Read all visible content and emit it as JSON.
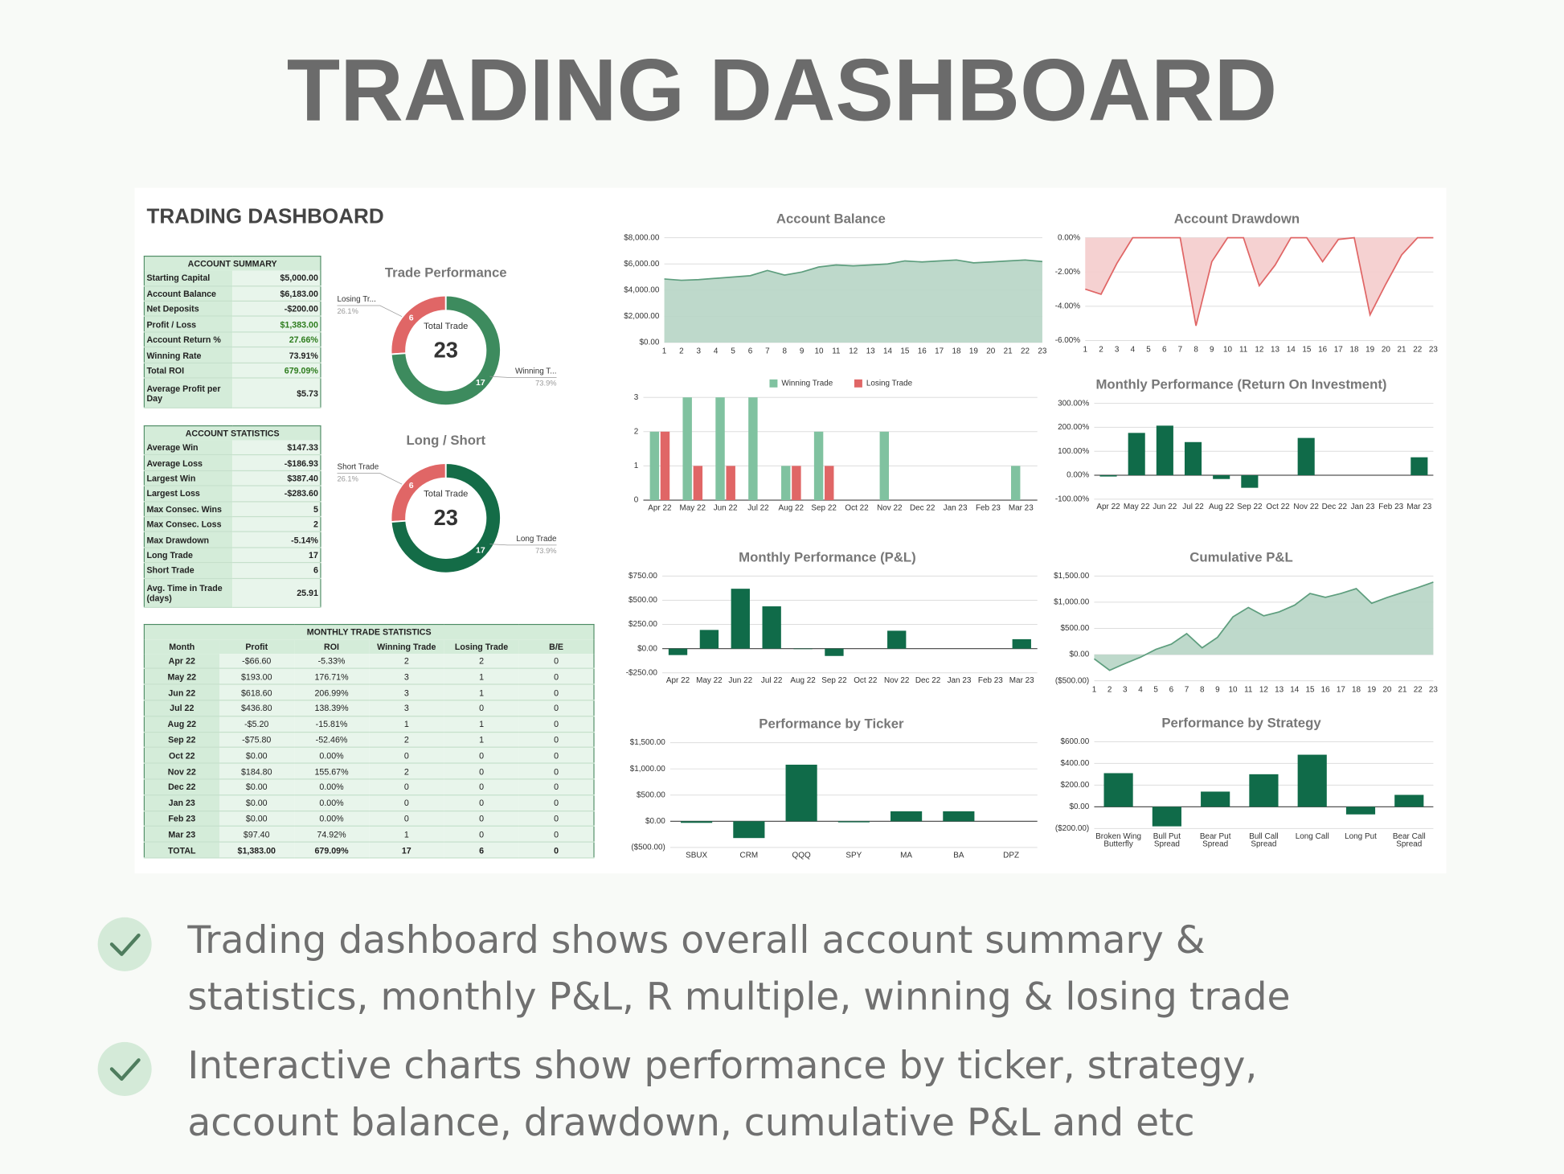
{
  "header": {
    "title": "TRADING DASHBOARD"
  },
  "dashboard": {
    "title": "TRADING DASHBOARD"
  },
  "account_summary": {
    "title": "ACCOUNT SUMMARY",
    "rows": [
      [
        "Starting Capital",
        "$5,000.00"
      ],
      [
        "Account Balance",
        "$6,183.00"
      ],
      [
        "Net Deposits",
        "-$200.00"
      ],
      [
        "Profit / Loss",
        "$1,383.00"
      ],
      [
        "Account Return %",
        "27.66%"
      ],
      [
        "Winning Rate",
        "73.91%"
      ],
      [
        "Total ROI",
        "679.09%"
      ],
      [
        "Average Profit per Day",
        "$5.73"
      ]
    ]
  },
  "account_statistics": {
    "title": "ACCOUNT STATISTICS",
    "rows": [
      [
        "Average Win",
        "$147.33"
      ],
      [
        "Average Loss",
        "-$186.93"
      ],
      [
        "Largest Win",
        "$387.40"
      ],
      [
        "Largest Loss",
        "-$283.60"
      ],
      [
        "Max Consec. Wins",
        5
      ],
      [
        "Max Consec. Loss",
        2
      ],
      [
        "Max Drawdown",
        "-5.14%"
      ],
      [
        "Long Trade",
        17
      ],
      [
        "Short Trade",
        6
      ],
      [
        "Avg. Time in Trade (days)",
        "25.91"
      ]
    ]
  },
  "monthly_trade_statistics": {
    "title": "MONTHLY TRADE STATISTICS",
    "columns": [
      "Month",
      "Profit",
      "ROI",
      "Winning Trade",
      "Losing Trade",
      "B/E"
    ],
    "rows": [
      [
        "Apr 22",
        "-$66.60",
        "-5.33%",
        2,
        2,
        0
      ],
      [
        "May 22",
        "$193.00",
        "176.71%",
        3,
        1,
        0
      ],
      [
        "Jun 22",
        "$618.60",
        "206.99%",
        3,
        1,
        0
      ],
      [
        "Jul 22",
        "$436.80",
        "138.39%",
        3,
        0,
        0
      ],
      [
        "Aug 22",
        "-$5.20",
        "-15.81%",
        1,
        1,
        0
      ],
      [
        "Sep 22",
        "-$75.80",
        "-52.46%",
        2,
        1,
        0
      ],
      [
        "Oct 22",
        "$0.00",
        "0.00%",
        0,
        0,
        0
      ],
      [
        "Nov 22",
        "$184.80",
        "155.67%",
        2,
        0,
        0
      ],
      [
        "Dec 22",
        "$0.00",
        "0.00%",
        0,
        0,
        0
      ],
      [
        "Jan 23",
        "$0.00",
        "0.00%",
        0,
        0,
        0
      ],
      [
        "Feb 23",
        "$0.00",
        "0.00%",
        0,
        0,
        0
      ],
      [
        "Mar 23",
        "$97.40",
        "74.92%",
        1,
        0,
        0
      ]
    ],
    "total": [
      "TOTAL",
      "$1,383.00",
      "679.09%",
      17,
      6,
      0
    ]
  },
  "chart_data": [
    {
      "type": "donut",
      "title": "Trade Performance",
      "categories": [
        "Losing Tr...",
        "Winning T..."
      ],
      "values": [
        6,
        17
      ],
      "percent_labels": [
        "26.1%",
        "73.9%"
      ],
      "colors": [
        "#e06666",
        "#3d8b5e"
      ],
      "center_label": "Total Trade",
      "total": 23
    },
    {
      "type": "donut",
      "title": "Long / Short",
      "categories": [
        "Short Trade",
        "Long Trade"
      ],
      "values": [
        6,
        17
      ],
      "percent_labels": [
        "26.1%",
        "73.9%"
      ],
      "colors": [
        "#e06666",
        "#146c47"
      ],
      "center_label": "Total Trade",
      "total": 23
    },
    {
      "type": "area",
      "title": "Account Balance",
      "x": [
        1,
        2,
        3,
        4,
        5,
        6,
        7,
        8,
        9,
        10,
        11,
        12,
        13,
        14,
        15,
        16,
        17,
        18,
        19,
        20,
        21,
        22,
        23
      ],
      "values": [
        4850,
        4750,
        4800,
        4900,
        5000,
        5100,
        5500,
        5150,
        5380,
        5770,
        5920,
        5850,
        5920,
        6000,
        6230,
        6150,
        6230,
        6300,
        6080,
        6150,
        6230,
        6300,
        6183
      ],
      "xlim": [
        1,
        23
      ],
      "xticks": [
        1,
        2,
        3,
        4,
        5,
        6,
        7,
        8,
        9,
        10,
        11,
        12,
        13,
        14,
        15,
        16,
        17,
        18,
        19,
        20,
        21,
        22,
        23
      ],
      "ylim": [
        0,
        8000
      ],
      "yticks": [
        {
          "value": 0,
          "label": "$0.00"
        },
        {
          "value": 2000,
          "label": "$2,000.00"
        },
        {
          "value": 4000,
          "label": "$4,000.00"
        },
        {
          "value": 6000,
          "label": "$6,000.00"
        },
        {
          "value": 8000,
          "label": "$8,000.00"
        }
      ],
      "color": "#5e9e7e",
      "area_color": "#b7d5c5",
      "grid": true
    },
    {
      "type": "area",
      "title": "Account Drawdown",
      "x": [
        1,
        2,
        3,
        4,
        5,
        6,
        7,
        8,
        9,
        10,
        11,
        12,
        13,
        14,
        15,
        16,
        17,
        18,
        19,
        20,
        21,
        22,
        23
      ],
      "values": [
        -3.0,
        -3.3,
        -1.5,
        0,
        0,
        0,
        0,
        -5.14,
        -1.4,
        0,
        0,
        -2.8,
        -1.6,
        0,
        0,
        -1.4,
        -0.1,
        0,
        -4.5,
        -2.7,
        -1.0,
        0,
        0
      ],
      "xlim": [
        1,
        23
      ],
      "xticks": [
        1,
        2,
        3,
        4,
        5,
        6,
        7,
        8,
        9,
        10,
        11,
        12,
        13,
        14,
        15,
        16,
        17,
        18,
        19,
        20,
        21,
        22,
        23
      ],
      "ylim": [
        -6,
        0
      ],
      "yticks": [
        {
          "value": 0,
          "label": "0.00%"
        },
        {
          "value": -2,
          "label": "-2.00%"
        },
        {
          "value": -4,
          "label": "-4.00%"
        },
        {
          "value": -6,
          "label": "-6.00%"
        }
      ],
      "color": "#e06666",
      "area_color": "#f4cccc",
      "grid": true
    },
    {
      "type": "bar",
      "categories": [
        "Apr 22",
        "May 22",
        "Jun 22",
        "Jul 22",
        "Aug 22",
        "Sep 22",
        "Oct 22",
        "Nov 22",
        "Dec 22",
        "Jan 23",
        "Feb 23",
        "Mar 23"
      ],
      "series": [
        {
          "name": "Winning Trade",
          "color": "#80c2a0",
          "values": [
            2,
            3,
            3,
            3,
            1,
            2,
            0,
            2,
            0,
            0,
            0,
            1
          ]
        },
        {
          "name": "Losing Trade",
          "color": "#e06666",
          "values": [
            2,
            1,
            1,
            0,
            1,
            1,
            0,
            0,
            0,
            0,
            0,
            0
          ]
        }
      ],
      "ylim": [
        0,
        3
      ],
      "yticks": [
        0,
        1,
        2,
        3
      ],
      "legend": "top",
      "grid": true
    },
    {
      "type": "bar",
      "title": "Monthly Performance (Return On Investment)",
      "categories": [
        "Apr 22",
        "May 22",
        "Jun 22",
        "Jul 22",
        "Aug 22",
        "Sep 22",
        "Oct 22",
        "Nov 22",
        "Dec 22",
        "Jan 23",
        "Feb 23",
        "Mar 23"
      ],
      "values": [
        -5.33,
        176.71,
        206.99,
        138.39,
        -15.81,
        -52.46,
        0,
        155.67,
        0,
        0,
        0,
        74.92
      ],
      "color": "#106b49",
      "ylim": [
        -100,
        300
      ],
      "yticks": [
        {
          "value": -100,
          "label": "-100.00%"
        },
        {
          "value": 0,
          "label": "0.00%"
        },
        {
          "value": 100,
          "label": "100.00%"
        },
        {
          "value": 200,
          "label": "200.00%"
        },
        {
          "value": 300,
          "label": "300.00%"
        }
      ],
      "grid": true
    },
    {
      "type": "bar",
      "title": "Monthly Performance (P&L)",
      "categories": [
        "Apr 22",
        "May 22",
        "Jun 22",
        "Jul 22",
        "Aug 22",
        "Sep 22",
        "Oct 22",
        "Nov 22",
        "Dec 22",
        "Jan 23",
        "Feb 23",
        "Mar 23"
      ],
      "values": [
        -66.6,
        193,
        618.6,
        436.8,
        -5.2,
        -75.8,
        0,
        184.8,
        0,
        0,
        0,
        97.4
      ],
      "color": "#106b49",
      "ylim": [
        -250,
        750
      ],
      "yticks": [
        {
          "value": -250,
          "label": "-$250.00"
        },
        {
          "value": 0,
          "label": "$0.00"
        },
        {
          "value": 250,
          "label": "$250.00"
        },
        {
          "value": 500,
          "label": "$500.00"
        },
        {
          "value": 750,
          "label": "$750.00"
        }
      ],
      "grid": true
    },
    {
      "type": "area",
      "title": "Cumulative P&L",
      "x": [
        1,
        2,
        3,
        4,
        5,
        6,
        7,
        8,
        9,
        10,
        11,
        12,
        13,
        14,
        15,
        16,
        17,
        18,
        19,
        20,
        21,
        22,
        23
      ],
      "values": [
        -80,
        -300,
        -170,
        -50,
        100,
        200,
        400,
        130,
        330,
        720,
        900,
        740,
        815,
        944,
        1167,
        1093,
        1167,
        1260,
        980,
        1090,
        1185,
        1280,
        1383
      ],
      "xlim": [
        1,
        23
      ],
      "xticks": [
        1,
        2,
        3,
        4,
        5,
        6,
        7,
        8,
        9,
        10,
        11,
        12,
        13,
        14,
        15,
        16,
        17,
        18,
        19,
        20,
        21,
        22,
        23
      ],
      "ylim": [
        -500,
        1500
      ],
      "yticks": [
        {
          "value": -500,
          "label": "($500.00)"
        },
        {
          "value": 0,
          "label": "$0.00"
        },
        {
          "value": 500,
          "label": "$500.00"
        },
        {
          "value": 1000,
          "label": "$1,000.00"
        },
        {
          "value": 1500,
          "label": "$1,500.00"
        }
      ],
      "color": "#5e9e7e",
      "area_color": "#b7d5c5",
      "grid": true
    },
    {
      "type": "bar",
      "title": "Performance by Ticker",
      "categories": [
        "SBUX",
        "CRM",
        "QQQ",
        "SPY",
        "MA",
        "BA",
        "DPZ"
      ],
      "values": [
        -30,
        -320,
        1080,
        -20,
        190,
        190,
        0
      ],
      "color": "#106b49",
      "ylim": [
        -500,
        1500
      ],
      "yticks": [
        {
          "value": -500,
          "label": "($500.00)"
        },
        {
          "value": 0,
          "label": "$0.00"
        },
        {
          "value": 500,
          "label": "$500.00"
        },
        {
          "value": 1000,
          "label": "$1,000.00"
        },
        {
          "value": 1500,
          "label": "$1,500.00"
        }
      ],
      "grid": true
    },
    {
      "type": "bar",
      "title": "Performance by Strategy",
      "categories": [
        "Broken Wing Butterfly",
        "Bull Put Spread",
        "Bear Put Spread",
        "Bull Call Spread",
        "Long Call",
        "Long Put",
        "Bear Call Spread"
      ],
      "values": [
        310,
        -180,
        140,
        300,
        480,
        -70,
        110
      ],
      "color": "#106b49",
      "ylim": [
        -200,
        600
      ],
      "yticks": [
        {
          "value": -200,
          "label": "($200.00)"
        },
        {
          "value": 0,
          "label": "$0.00"
        },
        {
          "value": 200,
          "label": "$200.00"
        },
        {
          "value": 400,
          "label": "$400.00"
        },
        {
          "value": 600,
          "label": "$600.00"
        }
      ],
      "grid": true
    }
  ],
  "bullets": [
    {
      "lines": [
        "Trading dashboard shows overall account summary &",
        "statistics, monthly P&L, R multiple, winning & losing trade"
      ]
    },
    {
      "lines": [
        "Interactive charts show performance by ticker, strategy,",
        "account balance, drawdown, cumulative P&L and etc"
      ]
    }
  ]
}
